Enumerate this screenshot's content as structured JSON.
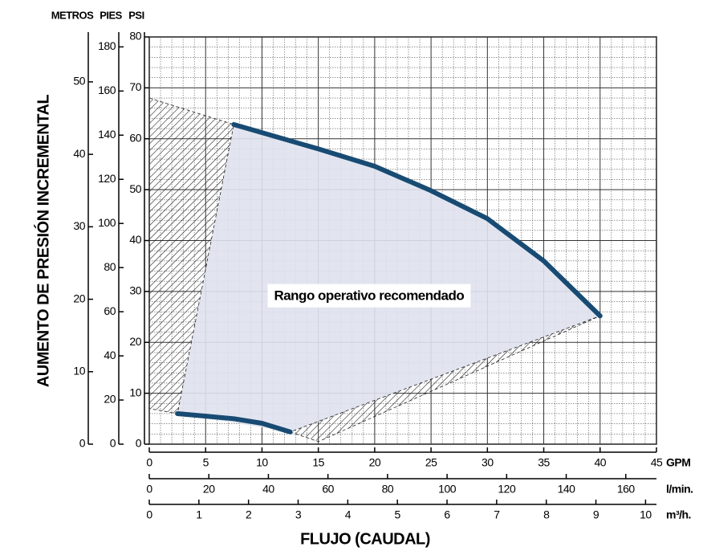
{
  "chart_data": {
    "type": "line",
    "xlabel": "FLUJO (CAUDAL)",
    "ylabel": "AUMENTO DE PRESIÓN INCREMENTAL",
    "xlim": [
      0,
      45
    ],
    "xticks": [
      0,
      5,
      10,
      15,
      20,
      25,
      30,
      35,
      40,
      45
    ],
    "xunit": "GPM",
    "x2lim": [
      0,
      170.3
    ],
    "x2ticks": [
      0,
      20,
      40,
      60,
      80,
      100,
      120,
      140,
      160
    ],
    "x2unit": "l/min.",
    "x3lim": [
      0,
      10.22
    ],
    "x3ticks": [
      0,
      1,
      2,
      3,
      4,
      5,
      6,
      7,
      8,
      9,
      10
    ],
    "x3unit": "m³/h.",
    "ylim": [
      0,
      80
    ],
    "yticks": [
      0,
      10,
      20,
      30,
      40,
      50,
      60,
      70,
      80
    ],
    "yunit": "PSI",
    "y2lim": [
      0,
      184.5
    ],
    "y2ticks": [
      0,
      20,
      40,
      60,
      80,
      100,
      120,
      140,
      160,
      180
    ],
    "y2unit": "PIES",
    "y3lim": [
      0,
      56.2
    ],
    "y3ticks": [
      0,
      10,
      20,
      30,
      40,
      50
    ],
    "y3unit": "METROS",
    "grid": true,
    "series": [
      {
        "color": "#184b73",
        "x": [
          7.5,
          15,
          20,
          25,
          30,
          35,
          40
        ],
        "values": [
          62.8,
          58,
          54.6,
          49.8,
          44.3,
          36,
          25.2
        ]
      },
      {
        "color": "#184b73",
        "x": [
          2.5,
          7.5,
          10,
          12.5
        ],
        "values": [
          6,
          5,
          4.1,
          2.4
        ]
      }
    ],
    "regions": [
      {
        "fill": "#dfe2ee",
        "x": [
          2.5,
          7.5,
          15,
          20,
          25,
          30,
          35,
          40,
          12.5
        ],
        "y": [
          6,
          62.8,
          58,
          54.6,
          49.8,
          44.3,
          36,
          25.2,
          2.4
        ]
      },
      {
        "fill": "hatch",
        "x": [
          0,
          7.5,
          2.5,
          0
        ],
        "y": [
          68,
          62.8,
          6,
          7
        ]
      },
      {
        "fill": "hatch",
        "x": [
          12.5,
          15,
          40
        ],
        "y": [
          2.4,
          0.5,
          25.2
        ]
      }
    ],
    "annotation": {
      "text": "Rango operativo recomendado",
      "x": 19.5,
      "y": 29
    }
  }
}
